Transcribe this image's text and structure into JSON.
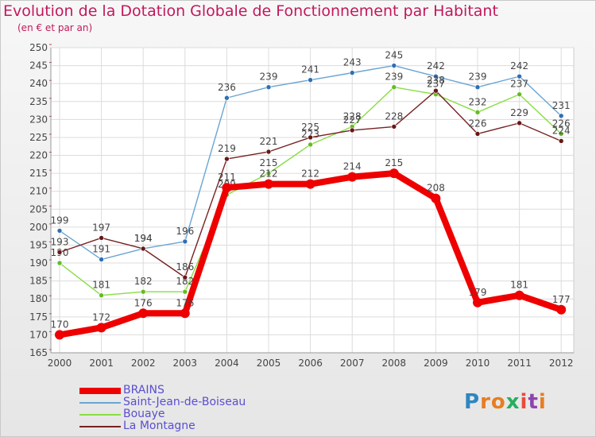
{
  "title": "Evolution de la Dotation Globale de Fonctionnement par Habitant",
  "subtitle": "(en € et par an)",
  "logo": {
    "text": "Proxiti",
    "letters": [
      "P",
      "r",
      "o",
      "x",
      "i",
      "t",
      "i"
    ],
    "colors": [
      "#2e86c1",
      "#e67e22",
      "#e67e22",
      "#27ae60",
      "#e74c3c",
      "#8e44ad",
      "#e67e22"
    ]
  },
  "legend": [
    {
      "label": "BRAINS",
      "color": "#ee0000"
    },
    {
      "label": "Saint-Jean-de-Boiseau",
      "color": "#6aa5d3"
    },
    {
      "label": "Bouaye",
      "color": "#88dd44"
    },
    {
      "label": "La Montagne",
      "color": "#772222"
    }
  ],
  "chart_data": {
    "type": "line",
    "title": "Evolution de la Dotation Globale de Fonctionnement par Habitant",
    "ylabel": "(en € et par an)",
    "xlabel": "",
    "x": [
      "2000",
      "2001",
      "2002",
      "2003",
      "2004",
      "2005",
      "2006",
      "2007",
      "2008",
      "2009",
      "2010",
      "2011",
      "2012"
    ],
    "ylim": [
      165,
      250
    ],
    "yticks": [
      165,
      170,
      175,
      180,
      185,
      190,
      195,
      200,
      205,
      210,
      215,
      220,
      225,
      230,
      235,
      240,
      245,
      250
    ],
    "grid": true,
    "series": [
      {
        "name": "Saint-Jean-de-Boiseau",
        "color": "#6aa5d3",
        "point_color": "#2e6fb5",
        "values": [
          199,
          191,
          194,
          196,
          236,
          239,
          241,
          243,
          245,
          242,
          239,
          242,
          231
        ]
      },
      {
        "name": "Bouaye",
        "color": "#88dd44",
        "point_color": "#66bb22",
        "values": [
          190,
          181,
          182,
          182,
          209,
          215,
          223,
          228,
          239,
          237,
          232,
          237,
          226
        ]
      },
      {
        "name": "La Montagne",
        "color": "#772222",
        "point_color": "#661818",
        "values": [
          193,
          197,
          194,
          186,
          219,
          221,
          225,
          227,
          228,
          238,
          226,
          229,
          224
        ]
      },
      {
        "name": "BRAINS",
        "color": "#ee0000",
        "point_color": "#ee0000",
        "values": [
          170,
          172,
          176,
          176,
          211,
          212,
          212,
          214,
          215,
          208,
          179,
          181,
          177
        ]
      }
    ]
  }
}
